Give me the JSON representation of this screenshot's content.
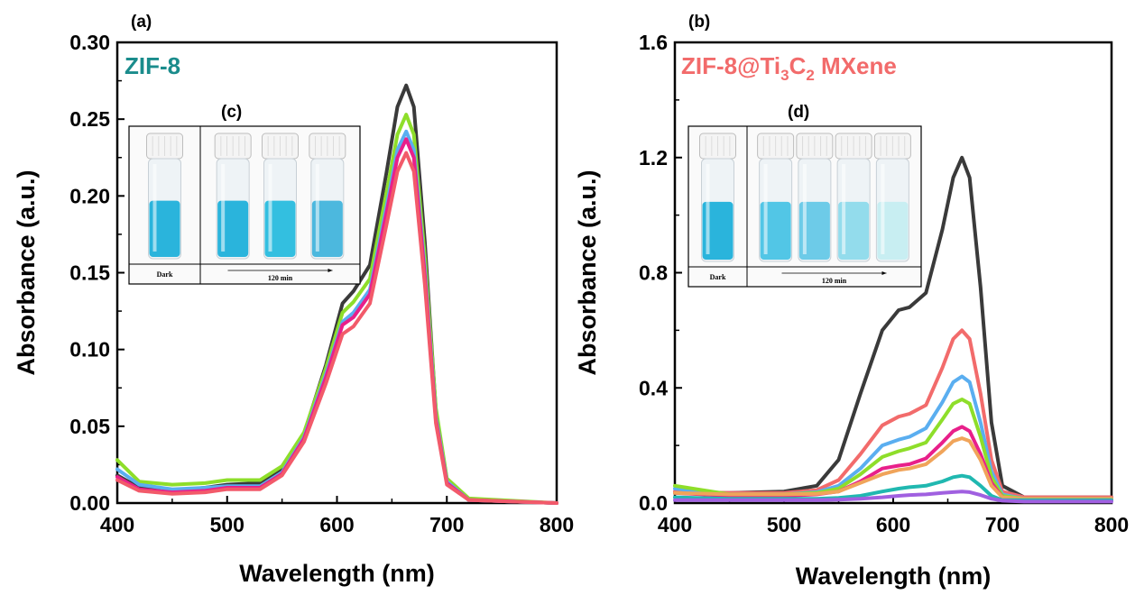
{
  "chart_data": [
    {
      "type": "line",
      "panel_label": "(a)",
      "title": "ZIF-8",
      "title_color": "#1a8c8c",
      "xlabel": "Wavelength (nm)",
      "ylabel": "Absorbance (a.u.)",
      "xlim": [
        400,
        800
      ],
      "ylim": [
        0,
        0.3
      ],
      "xticks": [
        "400",
        "500",
        "600",
        "700",
        "800"
      ],
      "yticks": [
        "0.00",
        "0.05",
        "0.10",
        "0.15",
        "0.20",
        "0.25",
        "0.30"
      ],
      "grid": false,
      "legend": "none",
      "series": [
        {
          "color": "#3a3a3a",
          "x": [
            400,
            420,
            450,
            480,
            500,
            530,
            550,
            570,
            590,
            605,
            615,
            630,
            645,
            655,
            663,
            670,
            680,
            690,
            700,
            720,
            800
          ],
          "y": [
            0.018,
            0.01,
            0.008,
            0.01,
            0.012,
            0.013,
            0.022,
            0.045,
            0.09,
            0.13,
            0.138,
            0.155,
            0.215,
            0.258,
            0.272,
            0.258,
            0.17,
            0.06,
            0.015,
            0.002,
            0.0
          ]
        },
        {
          "color": "#8ede2a",
          "x": [
            400,
            420,
            450,
            480,
            500,
            530,
            550,
            570,
            590,
            605,
            615,
            630,
            645,
            655,
            663,
            670,
            680,
            690,
            700,
            720,
            800
          ],
          "y": [
            0.028,
            0.014,
            0.012,
            0.013,
            0.015,
            0.015,
            0.024,
            0.046,
            0.088,
            0.124,
            0.131,
            0.146,
            0.202,
            0.24,
            0.253,
            0.24,
            0.16,
            0.062,
            0.016,
            0.003,
            0.0
          ]
        },
        {
          "color": "#5aaef0",
          "x": [
            400,
            420,
            450,
            480,
            500,
            530,
            550,
            570,
            590,
            605,
            615,
            630,
            645,
            655,
            663,
            670,
            680,
            690,
            700,
            720,
            800
          ],
          "y": [
            0.022,
            0.012,
            0.009,
            0.01,
            0.011,
            0.011,
            0.02,
            0.043,
            0.084,
            0.118,
            0.124,
            0.139,
            0.193,
            0.23,
            0.242,
            0.23,
            0.152,
            0.056,
            0.014,
            0.002,
            0.0
          ]
        },
        {
          "color": "#e8208a",
          "x": [
            400,
            420,
            450,
            480,
            500,
            530,
            550,
            570,
            590,
            605,
            615,
            630,
            645,
            655,
            663,
            670,
            680,
            690,
            700,
            720,
            800
          ],
          "y": [
            0.017,
            0.009,
            0.007,
            0.008,
            0.01,
            0.01,
            0.019,
            0.042,
            0.082,
            0.116,
            0.121,
            0.136,
            0.189,
            0.225,
            0.237,
            0.225,
            0.148,
            0.054,
            0.013,
            0.002,
            0.0
          ]
        },
        {
          "color": "#f25a6a",
          "x": [
            400,
            420,
            450,
            480,
            500,
            530,
            550,
            570,
            590,
            605,
            615,
            630,
            645,
            655,
            663,
            670,
            680,
            690,
            700,
            720,
            800
          ],
          "y": [
            0.015,
            0.008,
            0.006,
            0.007,
            0.009,
            0.009,
            0.018,
            0.04,
            0.078,
            0.11,
            0.115,
            0.13,
            0.181,
            0.216,
            0.228,
            0.216,
            0.142,
            0.052,
            0.012,
            0.002,
            0.0
          ]
        }
      ],
      "inset": {
        "label": "(c)",
        "left_caption": "Dark",
        "right_caption": "120 min",
        "vials": [
          {
            "liquid": "#2ab4dc"
          },
          {
            "liquid": "#2ab4dc"
          },
          {
            "liquid": "#33bfe0"
          },
          {
            "liquid": "#4cb8de"
          }
        ]
      }
    },
    {
      "type": "line",
      "panel_label": "(b)",
      "title": "ZIF-8@Ti",
      "title_sub1": "3",
      "title_mid": "C",
      "title_sub2": "2",
      "title_end": " MXene",
      "title_color": "#f26b6b",
      "xlabel": "Wavelength (nm)",
      "ylabel": "Absorbance (a.u.)",
      "xlim": [
        400,
        800
      ],
      "ylim": [
        0,
        1.6
      ],
      "xticks": [
        "400",
        "500",
        "600",
        "700",
        "800"
      ],
      "yticks": [
        "0.0",
        "0.4",
        "0.8",
        "1.2",
        "1.6"
      ],
      "grid": false,
      "legend": "none",
      "series": [
        {
          "color": "#3a3a3a",
          "x": [
            400,
            450,
            500,
            530,
            550,
            570,
            590,
            605,
            615,
            630,
            645,
            655,
            663,
            670,
            680,
            690,
            700,
            720,
            800
          ],
          "y": [
            0.035,
            0.035,
            0.04,
            0.06,
            0.15,
            0.38,
            0.6,
            0.67,
            0.68,
            0.73,
            0.95,
            1.13,
            1.2,
            1.13,
            0.75,
            0.28,
            0.06,
            0.02,
            0.02
          ]
        },
        {
          "color": "#f26b6b",
          "x": [
            400,
            450,
            500,
            530,
            550,
            570,
            590,
            605,
            615,
            630,
            645,
            655,
            663,
            670,
            680,
            690,
            700,
            720,
            800
          ],
          "y": [
            0.04,
            0.035,
            0.035,
            0.045,
            0.08,
            0.17,
            0.27,
            0.3,
            0.31,
            0.34,
            0.47,
            0.57,
            0.6,
            0.57,
            0.38,
            0.15,
            0.04,
            0.02,
            0.02
          ]
        },
        {
          "color": "#5aaef0",
          "x": [
            400,
            450,
            500,
            530,
            550,
            570,
            590,
            605,
            615,
            630,
            645,
            655,
            663,
            670,
            680,
            690,
            700,
            720,
            800
          ],
          "y": [
            0.05,
            0.03,
            0.03,
            0.038,
            0.06,
            0.12,
            0.2,
            0.22,
            0.23,
            0.26,
            0.35,
            0.42,
            0.44,
            0.42,
            0.28,
            0.11,
            0.03,
            0.015,
            0.015
          ]
        },
        {
          "color": "#8ede2a",
          "x": [
            400,
            450,
            500,
            530,
            550,
            570,
            590,
            605,
            615,
            630,
            645,
            655,
            663,
            670,
            680,
            690,
            700,
            720,
            800
          ],
          "y": [
            0.06,
            0.03,
            0.03,
            0.035,
            0.05,
            0.1,
            0.16,
            0.18,
            0.19,
            0.21,
            0.29,
            0.345,
            0.36,
            0.345,
            0.23,
            0.09,
            0.025,
            0.015,
            0.015
          ]
        },
        {
          "color": "#e8208a",
          "x": [
            400,
            450,
            500,
            530,
            550,
            570,
            590,
            605,
            615,
            630,
            645,
            655,
            663,
            670,
            680,
            690,
            700,
            720,
            800
          ],
          "y": [
            0.035,
            0.025,
            0.025,
            0.03,
            0.04,
            0.075,
            0.12,
            0.13,
            0.135,
            0.155,
            0.21,
            0.25,
            0.265,
            0.25,
            0.17,
            0.07,
            0.02,
            0.01,
            0.01
          ]
        },
        {
          "color": "#f0a45a",
          "x": [
            400,
            450,
            500,
            530,
            550,
            570,
            590,
            605,
            615,
            630,
            645,
            655,
            663,
            670,
            680,
            690,
            700,
            720,
            800
          ],
          "y": [
            0.035,
            0.03,
            0.03,
            0.032,
            0.04,
            0.07,
            0.1,
            0.115,
            0.12,
            0.135,
            0.18,
            0.215,
            0.225,
            0.215,
            0.15,
            0.06,
            0.02,
            0.015,
            0.015
          ]
        },
        {
          "color": "#20b8b0",
          "x": [
            400,
            450,
            500,
            530,
            550,
            570,
            590,
            605,
            615,
            630,
            645,
            655,
            663,
            670,
            680,
            690,
            700,
            720,
            800
          ],
          "y": [
            0.02,
            0.015,
            0.015,
            0.015,
            0.018,
            0.025,
            0.04,
            0.05,
            0.055,
            0.06,
            0.075,
            0.09,
            0.095,
            0.09,
            0.06,
            0.025,
            0.01,
            0.01,
            0.01
          ]
        },
        {
          "color": "#a060e0",
          "x": [
            400,
            450,
            500,
            530,
            550,
            570,
            590,
            605,
            615,
            630,
            645,
            655,
            663,
            670,
            680,
            690,
            700,
            720,
            800
          ],
          "y": [
            0.01,
            0.01,
            0.01,
            0.01,
            0.012,
            0.015,
            0.02,
            0.025,
            0.028,
            0.03,
            0.035,
            0.038,
            0.04,
            0.038,
            0.028,
            0.015,
            0.008,
            0.005,
            0.005
          ]
        }
      ],
      "inset": {
        "label": "(d)",
        "left_caption": "Dark",
        "right_caption": "120 min",
        "vials": [
          {
            "liquid": "#2ab4dc"
          },
          {
            "liquid": "#52c6e6"
          },
          {
            "liquid": "#6dcbe8"
          },
          {
            "liquid": "#93dcec"
          },
          {
            "liquid": "#c8eef2"
          }
        ]
      }
    }
  ]
}
